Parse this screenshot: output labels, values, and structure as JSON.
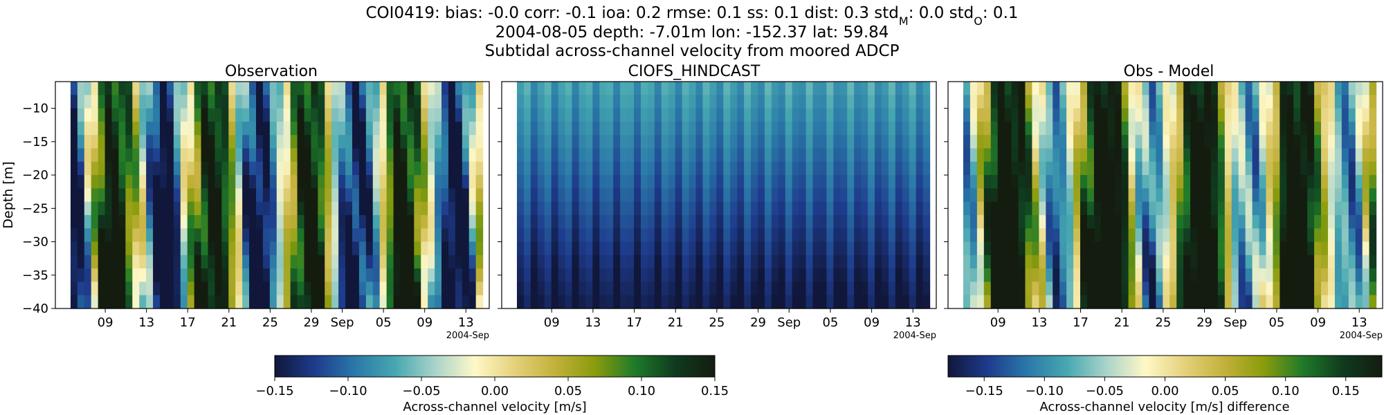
{
  "header": {
    "line1": "COI0419: bias: -0.0  corr: -0.1  ioa: 0.2  rmse: 0.1  ss: 0.1  dist: 0.3  std",
    "line1_std_m_sub": "M",
    "line1_mid": ": 0.0  std",
    "line1_std_o_sub": "O",
    "line1_end": ": 0.1",
    "line2": "2004-08-05 depth: -7.01m lon: -152.37 lat: 59.84",
    "line3": "Subtidal across-channel velocity from moored ADCP"
  },
  "colors": {
    "colormap": [
      "#10173a",
      "#1e3b8c",
      "#2a78a8",
      "#46a7b0",
      "#a8d3c9",
      "#fff8c7",
      "#e4d17b",
      "#c2b13b",
      "#8a9c0c",
      "#1f7a2a",
      "#0f3b1f",
      "#141c10"
    ],
    "frame": "#000000"
  },
  "chart_data": [
    {
      "type": "heatmap",
      "title": "Observation",
      "ylabel": "Depth [m]",
      "ylim": [
        -40,
        -6
      ],
      "yticks": [
        "−10",
        "−15",
        "−20",
        "−25",
        "−30",
        "−35",
        "−40"
      ],
      "xticks": [
        "09",
        "13",
        "17",
        "21",
        "25",
        "29",
        "Sep",
        "05",
        "09",
        "13"
      ],
      "x_offset_label": "2004-Sep",
      "x_range": [
        "2004-08-05",
        "2004-09-14"
      ],
      "depth_levels": [
        -7,
        -9,
        -11,
        -13,
        -15,
        -17,
        -19,
        -21,
        -23,
        -25,
        -27,
        -29,
        -31,
        -33,
        -35,
        -37,
        -39
      ],
      "field": "observation",
      "vmin": -0.15,
      "vmax": 0.15
    },
    {
      "type": "heatmap",
      "title": "CIOFS_HINDCAST",
      "ylim": [
        -40,
        -6
      ],
      "xticks": [
        "09",
        "13",
        "17",
        "21",
        "25",
        "29",
        "Sep",
        "05",
        "09",
        "13"
      ],
      "x_offset_label": "2004-Sep",
      "x_range": [
        "2004-08-05",
        "2004-09-14"
      ],
      "field": "model",
      "vmin": -0.15,
      "vmax": 0.15
    },
    {
      "type": "heatmap",
      "title": "Obs - Model",
      "ylim": [
        -40,
        -6
      ],
      "xticks": [
        "09",
        "13",
        "17",
        "21",
        "25",
        "29",
        "Sep",
        "05",
        "09",
        "13"
      ],
      "x_offset_label": "2004-Sep",
      "x_range": [
        "2004-08-05",
        "2004-09-14"
      ],
      "field": "difference",
      "vmin": -0.18,
      "vmax": 0.18
    }
  ],
  "colorbars": [
    {
      "label": "Across-channel velocity [m/s]",
      "vmin": -0.15,
      "vmax": 0.15,
      "ticks": [
        "−0.15",
        "−0.10",
        "−0.05",
        "0.00",
        "0.05",
        "0.10",
        "0.15"
      ]
    },
    {
      "label": "Across-channel velocity [m/s] difference",
      "vmin": -0.18,
      "vmax": 0.18,
      "ticks": [
        "−0.15",
        "−0.10",
        "−0.05",
        "0.00",
        "0.05",
        "0.10",
        "0.15"
      ]
    }
  ]
}
